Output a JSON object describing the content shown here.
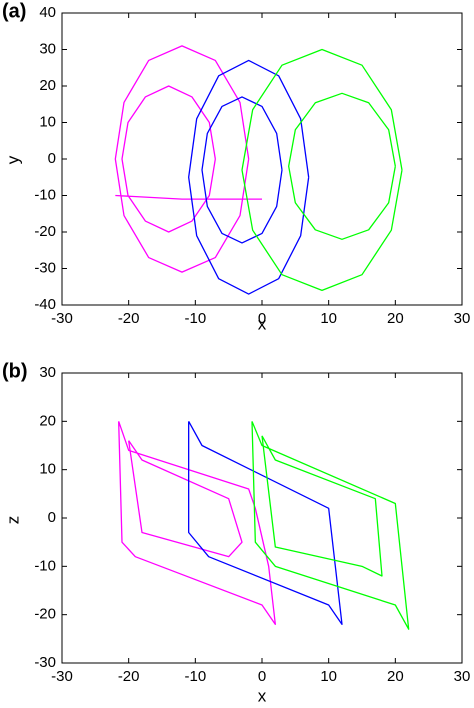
{
  "chart_data": [
    {
      "type": "line",
      "panel_label": "(a)",
      "xlabel": "x",
      "ylabel": "y",
      "xlim": [
        -30,
        30
      ],
      "ylim": [
        -40,
        40
      ],
      "xticks": [
        -30,
        -20,
        -10,
        0,
        10,
        20,
        30
      ],
      "yticks": [
        -40,
        -30,
        -20,
        -10,
        0,
        10,
        20,
        30,
        40
      ],
      "series": [
        {
          "color": "#ff00ff",
          "x": [
            -2,
            -3.3,
            -7,
            -12,
            -17,
            -20.7,
            -22,
            -20.7,
            -17,
            -12,
            -7,
            -3.3,
            -2,
            null,
            -7,
            -7.9,
            -10.5,
            -14,
            -17.5,
            -20.1,
            -21,
            -20.1,
            -17.5,
            -14,
            -10.5,
            -7.9,
            -7,
            null,
            -22,
            -12,
            0
          ],
          "values": [
            0,
            15.5,
            27,
            31,
            27,
            15.5,
            0,
            -15.5,
            -27,
            -31,
            -27,
            -15.5,
            0,
            null,
            0,
            10,
            17,
            20,
            17,
            10,
            0,
            -10,
            -17,
            -20,
            -17,
            -10,
            0,
            null,
            -10,
            -11,
            -11
          ]
        },
        {
          "color": "#0000ff",
          "x": [
            7,
            5.8,
            2.5,
            -2,
            -6.5,
            -9.8,
            -11,
            -9.8,
            -6.5,
            -2,
            2.5,
            5.8,
            7,
            null,
            3,
            2.2,
            0,
            -3,
            -6,
            -8.2,
            -9,
            -8.2,
            -6,
            -3,
            0,
            2.2,
            3
          ],
          "values": [
            -5,
            11,
            22.8,
            27,
            22.8,
            11,
            -5,
            -21,
            -32.8,
            -37,
            -32.8,
            -21,
            -5,
            null,
            -3,
            7,
            14.4,
            17,
            14.4,
            7,
            -3,
            -13,
            -20.4,
            -23,
            -20.4,
            -13,
            -3
          ]
        },
        {
          "color": "#00ff00",
          "x": [
            21,
            19.4,
            15,
            9,
            3,
            -1.4,
            -3,
            -1.4,
            3,
            9,
            15,
            19.4,
            21,
            null,
            20,
            19,
            16,
            12,
            8,
            5,
            4,
            5,
            8,
            12,
            16,
            19,
            20
          ],
          "values": [
            -3,
            13.5,
            25.7,
            30,
            25.7,
            13.5,
            -3,
            -19.5,
            -31.7,
            -36,
            -31.7,
            -19.5,
            -3,
            null,
            -2,
            8,
            15.4,
            18,
            15.4,
            8,
            -2,
            -12,
            -19.4,
            -22,
            -19.4,
            -12,
            -2
          ]
        }
      ]
    },
    {
      "type": "line",
      "panel_label": "(b)",
      "xlabel": "x",
      "ylabel": "z",
      "xlim": [
        -30,
        30
      ],
      "ylim": [
        -30,
        30
      ],
      "xticks": [
        -30,
        -20,
        -10,
        0,
        10,
        20,
        30
      ],
      "yticks": [
        -30,
        -20,
        -10,
        0,
        10,
        20,
        30
      ],
      "series": [
        {
          "color": "#ff00ff",
          "x": [
            -21.5,
            -20,
            -2,
            -1,
            1,
            2,
            0,
            -19,
            -21,
            -21.5,
            null,
            -20,
            -18,
            -5,
            -3,
            -5,
            -18,
            -20
          ],
          "values": [
            20,
            14,
            6,
            2,
            -10,
            -22,
            -18,
            -8,
            -5,
            20,
            null,
            16,
            12,
            4,
            -5,
            -8,
            -3,
            16
          ]
        },
        {
          "color": "#0000ff",
          "x": [
            -11,
            -9,
            10,
            11,
            12,
            10,
            -8,
            -11,
            -11
          ],
          "values": [
            20,
            15,
            2,
            -10,
            -22,
            -18,
            -8,
            -3,
            20
          ]
        },
        {
          "color": "#00ff00",
          "x": [
            -1.5,
            0,
            20,
            21,
            22,
            20,
            2,
            -1,
            -1.5,
            null,
            0,
            2,
            17,
            18,
            15,
            2,
            0
          ],
          "values": [
            20,
            15,
            3,
            -10,
            -23,
            -18,
            -10,
            -5,
            20,
            null,
            17,
            12,
            4,
            -12,
            -10,
            -6,
            17
          ]
        }
      ]
    }
  ]
}
